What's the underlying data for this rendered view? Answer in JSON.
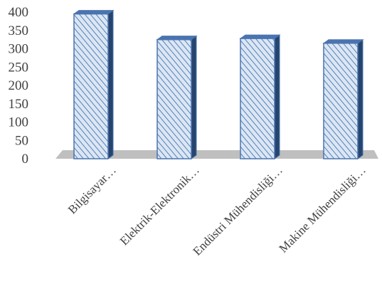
{
  "chart_data": {
    "type": "bar",
    "style": "3d-column",
    "categories": [
      "Bilgisayar…",
      "Elektrik-Elektronik…",
      "Endüstri Mühendisliği…",
      "Makine Mühendisliği…"
    ],
    "values": [
      395,
      325,
      328,
      315
    ],
    "ylim": [
      0,
      400
    ],
    "yticks": [
      "0",
      "50",
      "100",
      "150",
      "200",
      "250",
      "300",
      "350",
      "400"
    ],
    "grid": false,
    "legend": "none",
    "colors": {
      "bar_fill": "#dce6f2",
      "bar_hatch": "#4f81bd",
      "bar_edge": "#4a74b0",
      "bar_side": "#26456e",
      "floor": "#bfbfbf",
      "text": "#404040"
    }
  }
}
